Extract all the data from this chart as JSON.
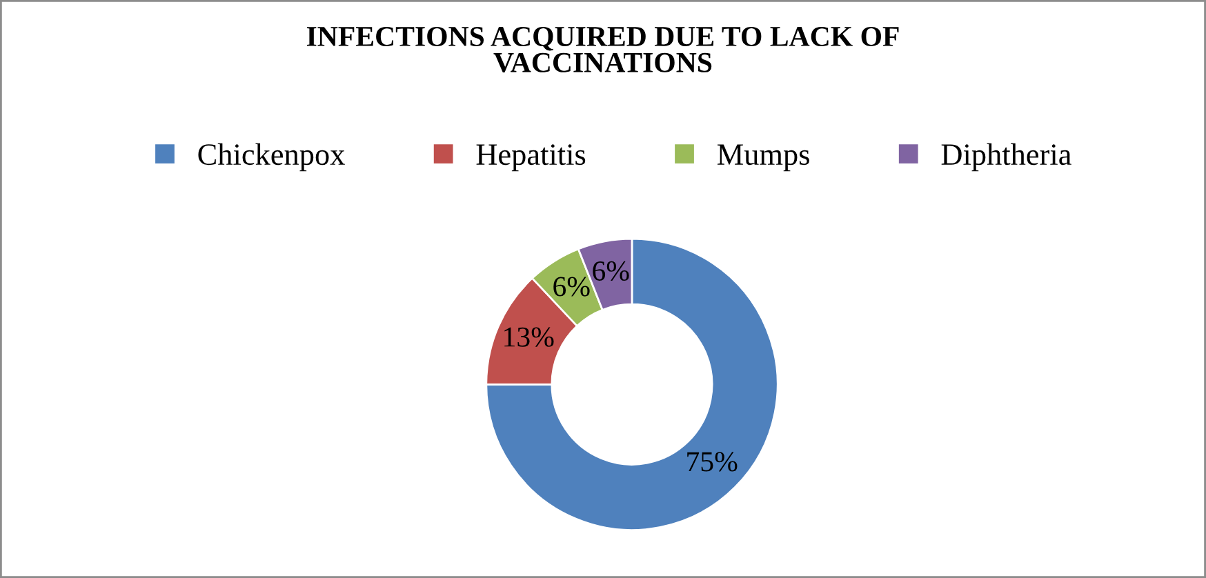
{
  "chart_data": {
    "type": "donut",
    "title": "INFECTIONS ACQUIRED DUE TO LACK OF\nVACCINATIONS",
    "categories": [
      "Chickenpox",
      "Hepatitis",
      "Mumps",
      "Diphtheria"
    ],
    "values": [
      75,
      13,
      6,
      6
    ],
    "value_labels": [
      "75%",
      "13%",
      "6%",
      "6%"
    ],
    "colors": [
      "#4f81bd",
      "#c0504d",
      "#9bbb59",
      "#8064a2"
    ],
    "legend": "top"
  }
}
